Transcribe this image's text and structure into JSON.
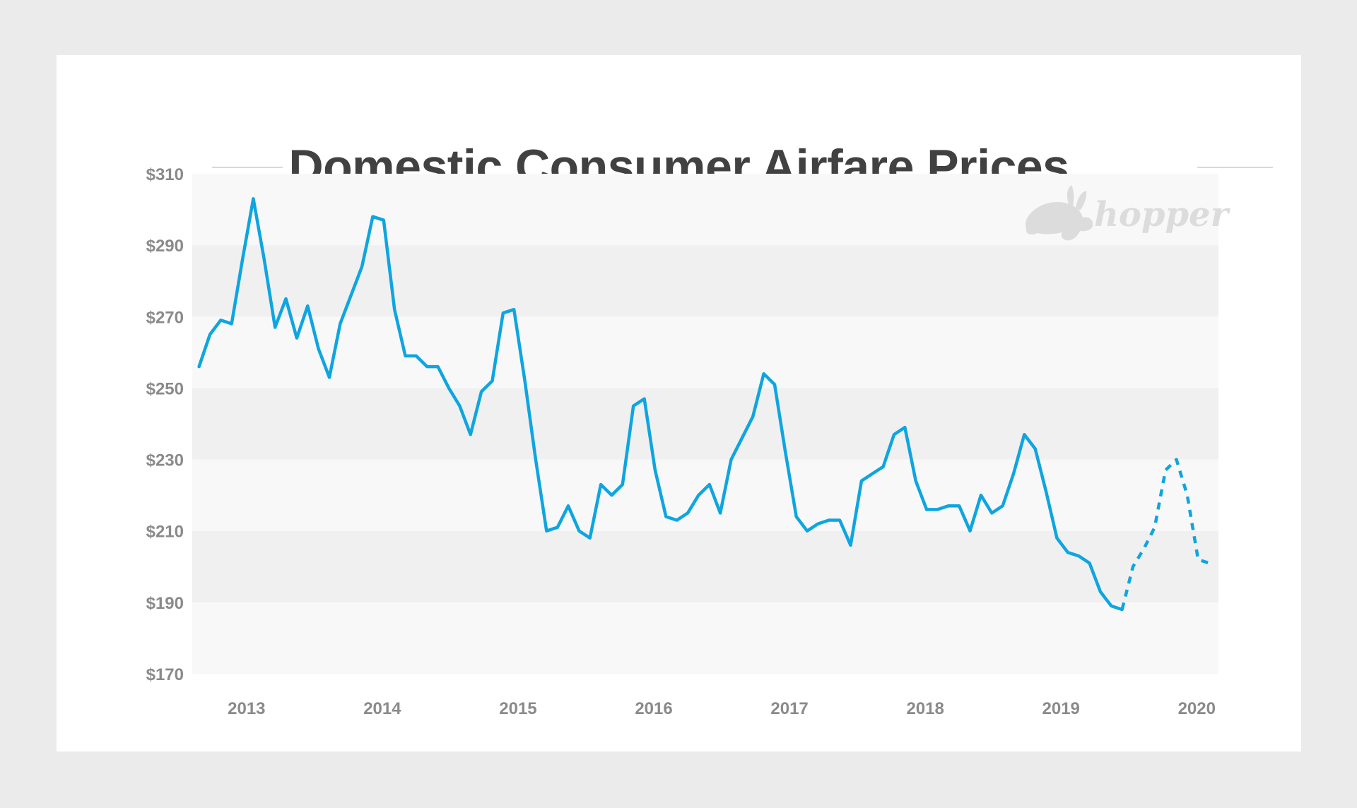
{
  "page": {
    "title": "Domestic Consumer Airfare Prices",
    "logo_text": "hopper",
    "logo_icon": "rabbit-icon"
  },
  "colors": {
    "background": "#ebebeb",
    "card": "#ffffff",
    "band_light": "#f8f8f8",
    "band_dark": "#f0f0f0",
    "line": "#0ea5e0",
    "title": "#414141",
    "tick_label": "#8a8a8a",
    "logo": "#dcdcdc"
  },
  "chart_data": {
    "type": "line",
    "title": "Domestic Consumer Airfare Prices",
    "xlabel": "",
    "ylabel": "",
    "ylim": [
      170,
      310
    ],
    "xlim": [
      2012.6,
      2020.16
    ],
    "y_ticks": [
      310,
      290,
      270,
      250,
      230,
      210,
      190,
      170
    ],
    "y_tick_labels": [
      "$310",
      "$290",
      "$270",
      "$250",
      "$230",
      "$210",
      "$190",
      "$170"
    ],
    "x_ticks": [
      2013,
      2014,
      2015,
      2016,
      2017,
      2018,
      2019,
      2020
    ],
    "x_tick_labels": [
      "2013",
      "2014",
      "2015",
      "2016",
      "2017",
      "2018",
      "2019",
      "2020"
    ],
    "grid": "alternating horizontal bands",
    "legend": "none",
    "series": [
      {
        "style": "solid",
        "x": [
          2012.65,
          2012.73,
          2012.81,
          2012.89,
          2012.97,
          2013.05,
          2013.13,
          2013.21,
          2013.29,
          2013.37,
          2013.45,
          2013.53,
          2013.61,
          2013.69,
          2013.77,
          2013.85,
          2013.93,
          2014.01,
          2014.09,
          2014.17,
          2014.25,
          2014.33,
          2014.41,
          2014.49,
          2014.57,
          2014.65,
          2014.73,
          2014.81,
          2014.89,
          2014.97,
          2015.05,
          2015.13,
          2015.21,
          2015.29,
          2015.37,
          2015.45,
          2015.53,
          2015.61,
          2015.69,
          2015.77,
          2015.85,
          2015.93,
          2016.01,
          2016.09,
          2016.17,
          2016.25,
          2016.33,
          2016.41,
          2016.49,
          2016.57,
          2016.65,
          2016.73,
          2016.81,
          2016.89,
          2016.97,
          2017.05,
          2017.13,
          2017.21,
          2017.29,
          2017.37,
          2017.45,
          2017.53,
          2017.61,
          2017.69,
          2017.77,
          2017.85,
          2017.93,
          2018.01,
          2018.09,
          2018.17,
          2018.25,
          2018.33,
          2018.41,
          2018.49,
          2018.57,
          2018.65,
          2018.73,
          2018.81,
          2018.89,
          2018.97,
          2019.05,
          2019.13,
          2019.21,
          2019.29,
          2019.37,
          2019.45
        ],
        "y": [
          256,
          265,
          269,
          268,
          286,
          303,
          286,
          267,
          275,
          264,
          273,
          261,
          253,
          268,
          276,
          284,
          298,
          297,
          272,
          259,
          259,
          256,
          256,
          250,
          245,
          237,
          249,
          252,
          271,
          272,
          252,
          230,
          210,
          211,
          217,
          210,
          208,
          223,
          220,
          223,
          245,
          247,
          227,
          214,
          213,
          215,
          220,
          223,
          215,
          230,
          236,
          242,
          254,
          251,
          232,
          214,
          210,
          212,
          213,
          213,
          206,
          224,
          226,
          228,
          237,
          239,
          224,
          216,
          216,
          217,
          217,
          210,
          220,
          215,
          217,
          226,
          237,
          233,
          221,
          208,
          204,
          203,
          201,
          193,
          189,
          188
        ]
      },
      {
        "style": "dashed",
        "x": [
          2019.45,
          2019.53,
          2019.61,
          2019.69,
          2019.77,
          2019.85,
          2019.93,
          2020.01,
          2020.09
        ],
        "y": [
          188,
          200,
          205,
          211,
          227,
          230,
          220,
          202,
          201
        ]
      }
    ]
  }
}
